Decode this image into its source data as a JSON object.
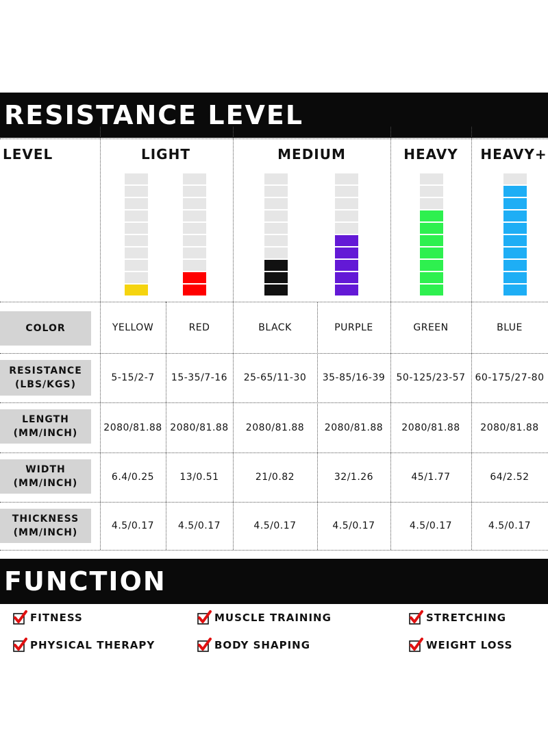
{
  "resistance_title": "RESISTANCE LEVEL",
  "function_title": "FUNCTION",
  "header": {
    "level": "LEVEL",
    "light": "LIGHT",
    "medium": "MEDIUM",
    "heavy": "HEAVY",
    "heavy_plus": "HEAVY+"
  },
  "bands": [
    {
      "level_filled": 1,
      "level_total": 10,
      "color": "#f5d40f"
    },
    {
      "level_filled": 2,
      "level_total": 10,
      "color": "#ff0000"
    },
    {
      "level_filled": 3,
      "level_total": 10,
      "color": "#111111"
    },
    {
      "level_filled": 5,
      "level_total": 10,
      "color": "#6319d6"
    },
    {
      "level_filled": 7,
      "level_total": 10,
      "color": "#2ef04f"
    },
    {
      "level_filled": 9,
      "level_total": 10,
      "color": "#1eaef5"
    }
  ],
  "empty_segment_color": "#e6e6e6",
  "rows": [
    {
      "label": "COLOR",
      "values": [
        "YELLOW",
        "RED",
        "BLACK",
        "PURPLE",
        "GREEN",
        "BLUE"
      ]
    },
    {
      "label": "RESISTANCE\n(LBS/KGS)",
      "values": [
        "5-15/2-7",
        "15-35/7-16",
        "25-65/11-30",
        "35-85/16-39",
        "50-125/23-57",
        "60-175/27-80"
      ]
    },
    {
      "label": "LENGTH\n(MM/INCH)",
      "values": [
        "2080/81.88",
        "2080/81.88",
        "2080/81.88",
        "2080/81.88",
        "2080/81.88",
        "2080/81.88"
      ]
    },
    {
      "label": "WIDTH\n(MM/INCH)",
      "values": [
        "6.4/0.25",
        "13/0.51",
        "21/0.82",
        "32/1.26",
        "45/1.77",
        "64/2.52"
      ]
    },
    {
      "label": "THICKNESS\n(MM/INCH)",
      "values": [
        "4.5/0.17",
        "4.5/0.17",
        "4.5/0.17",
        "4.5/0.17",
        "4.5/0.17",
        "4.5/0.17"
      ]
    }
  ],
  "functions": [
    "FITNESS",
    "MUSCLE TRAINING",
    "STRETCHING",
    "PHYSICAL THERAPY",
    "BODY SHAPING",
    "WEIGHT LOSS"
  ],
  "check_icon": "red-checkmark-box-icon",
  "accent_red": "#e01010"
}
